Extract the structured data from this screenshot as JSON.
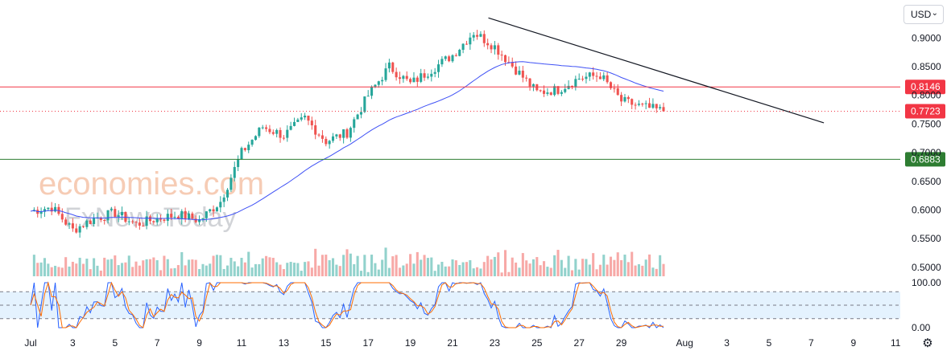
{
  "header": {
    "currency": "USD"
  },
  "watermark": {
    "line1": "economies.com",
    "line2": "FxNewsToday"
  },
  "chart_data": [
    {
      "type": "candlestick",
      "title": "",
      "ylim": [
        0.49,
        0.955
      ],
      "yticks": [
        "0.9000",
        "0.8500",
        "0.8000",
        "0.7500",
        "0.7000",
        "0.6500",
        "0.6000",
        "0.5500",
        "0.5000"
      ],
      "yticks_values": [
        0.9,
        0.85,
        0.8,
        0.75,
        0.7,
        0.65,
        0.6,
        0.55,
        0.5
      ],
      "xticks": [
        "Jul",
        "3",
        "5",
        "7",
        "9",
        "11",
        "13",
        "15",
        "17",
        "19",
        "21",
        "23",
        "25",
        "27",
        "29",
        "Aug",
        "3",
        "5",
        "7",
        "9",
        "11"
      ],
      "xticks_day_index": [
        0,
        2,
        4,
        6,
        8,
        10,
        12,
        14,
        16,
        18,
        20,
        22,
        24,
        26,
        28,
        31,
        33,
        35,
        37,
        39,
        41
      ],
      "candles_per_day": 6,
      "price_levels": [
        {
          "label": "0.8146",
          "value": 0.8146,
          "color": "#f23645",
          "style": "solid"
        },
        {
          "label": "0.7723",
          "value": 0.7723,
          "color": "#f23645",
          "style": "dotted"
        },
        {
          "label": "0.6883",
          "value": 0.6883,
          "color": "#2e7d32",
          "style": "solid"
        }
      ],
      "trendline": {
        "start": {
          "day": 21.7,
          "price": 0.935
        },
        "end": {
          "day": 37.6,
          "price": 0.752
        },
        "color": "#131722"
      },
      "moving_average": {
        "color": "#3f51f5"
      },
      "up_color": "#26a69a",
      "down_color": "#ef5350",
      "ohlc_anchors": [
        [
          0,
          0.598
        ],
        [
          1,
          0.605
        ],
        [
          2,
          0.565
        ],
        [
          3,
          0.585
        ],
        [
          4,
          0.595
        ],
        [
          5,
          0.575
        ],
        [
          6,
          0.585
        ],
        [
          7,
          0.592
        ],
        [
          8,
          0.582
        ],
        [
          9,
          0.615
        ],
        [
          10,
          0.7
        ],
        [
          11,
          0.745
        ],
        [
          12,
          0.73
        ],
        [
          13,
          0.76
        ],
        [
          14,
          0.72
        ],
        [
          15,
          0.735
        ],
        [
          16,
          0.8
        ],
        [
          17,
          0.85
        ],
        [
          18,
          0.82
        ],
        [
          19,
          0.845
        ],
        [
          20,
          0.87
        ],
        [
          21,
          0.91
        ],
        [
          22,
          0.885
        ],
        [
          23,
          0.845
        ],
        [
          24,
          0.805
        ],
        [
          25,
          0.81
        ],
        [
          26,
          0.83
        ],
        [
          27,
          0.835
        ],
        [
          28,
          0.79
        ],
        [
          29,
          0.78
        ],
        [
          30,
          0.7723
        ]
      ]
    },
    {
      "type": "stochastic",
      "ylim": [
        0,
        100
      ],
      "yticks": [
        "100.00",
        "0.00"
      ],
      "yticks_values": [
        100,
        0
      ],
      "band": [
        20,
        80
      ],
      "k_color": "#2962ff",
      "d_color": "#ff6d00"
    }
  ]
}
